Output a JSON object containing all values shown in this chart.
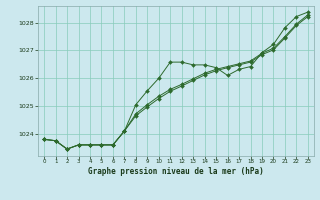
{
  "title": "Graphe pression niveau de la mer (hPa)",
  "bg_color": "#cce8ee",
  "line_color": "#2d6a2d",
  "marker_color": "#2d6a2d",
  "grid_color": "#88ccbb",
  "xlim": [
    -0.5,
    23.5
  ],
  "ylim": [
    1023.2,
    1028.6
  ],
  "yticks": [
    1024,
    1025,
    1026,
    1027,
    1028
  ],
  "xticks": [
    0,
    1,
    2,
    3,
    4,
    5,
    6,
    7,
    8,
    9,
    10,
    11,
    12,
    13,
    14,
    15,
    16,
    17,
    18,
    19,
    20,
    21,
    22,
    23
  ],
  "series1": [
    1023.8,
    1023.75,
    1023.45,
    1023.6,
    1023.6,
    1023.6,
    1023.6,
    1024.1,
    1025.05,
    1025.55,
    1026.0,
    1026.58,
    1026.58,
    1026.48,
    1026.48,
    1026.38,
    1026.1,
    1026.32,
    1026.42,
    1026.92,
    1027.22,
    1027.82,
    1028.22,
    1028.38
  ],
  "series2": [
    1023.8,
    1023.75,
    1023.45,
    1023.6,
    1023.6,
    1023.6,
    1023.6,
    1024.1,
    1024.72,
    1025.05,
    1025.35,
    1025.6,
    1025.78,
    1025.98,
    1026.18,
    1026.32,
    1026.42,
    1026.52,
    1026.62,
    1026.9,
    1027.08,
    1027.5,
    1027.95,
    1028.28
  ],
  "series3": [
    1023.8,
    1023.75,
    1023.45,
    1023.6,
    1023.6,
    1023.6,
    1023.6,
    1024.1,
    1024.65,
    1024.97,
    1025.27,
    1025.53,
    1025.72,
    1025.92,
    1026.12,
    1026.27,
    1026.38,
    1026.48,
    1026.58,
    1026.85,
    1027.02,
    1027.45,
    1027.9,
    1028.22
  ]
}
